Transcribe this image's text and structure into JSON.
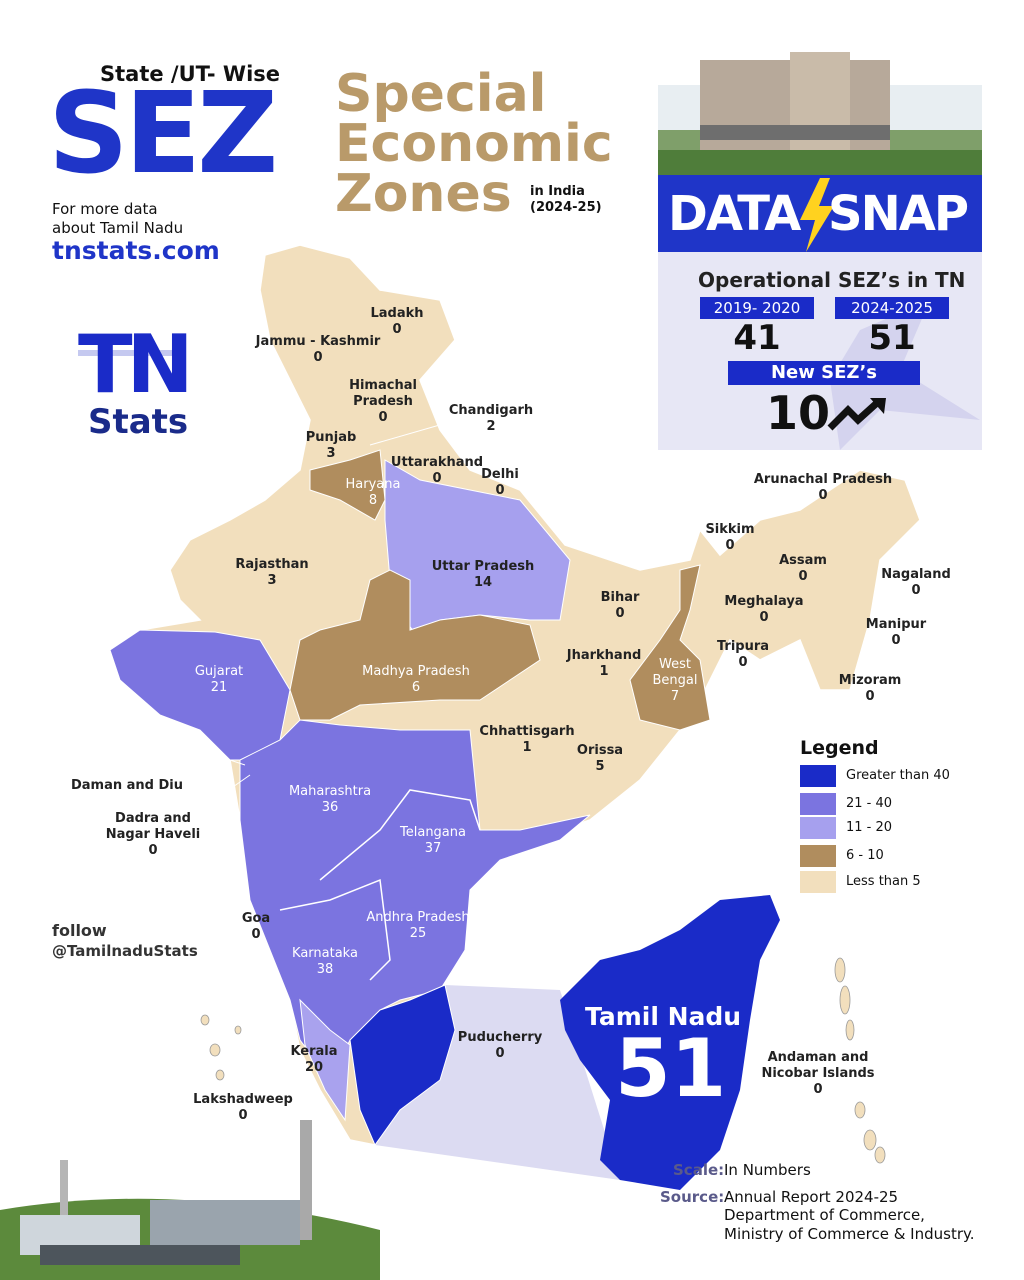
{
  "header": {
    "supertitle": "State /UT- Wise",
    "sez": "SEZ",
    "title_lines": [
      "Special",
      "Economic",
      "Zones"
    ],
    "in_india": "in India",
    "year": "(2024-25)",
    "more_data": [
      "For more data",
      "about Tamil Nadu"
    ],
    "site": "tnstats.com"
  },
  "logo": {
    "tn": "TN",
    "stats": "Stats"
  },
  "datasnap": {
    "brand": [
      "DATA",
      "SNAP"
    ],
    "heading": "Operational SEZ’s in TN",
    "periods": [
      {
        "label": "2019- 2020",
        "value": 41
      },
      {
        "label": "2024-2025",
        "value": 51
      }
    ],
    "new_label": "New SEZ’s",
    "new_value": 10
  },
  "regions": [
    {
      "name": "Ladakh",
      "value": 0
    },
    {
      "name": "Jammu - Kashmir",
      "value": 0
    },
    {
      "name": "Himachal\nPradesh",
      "value": 0
    },
    {
      "name": "Chandigarh",
      "value": 2
    },
    {
      "name": "Punjab",
      "value": 3
    },
    {
      "name": "Uttarakhand",
      "value": 0
    },
    {
      "name": "Delhi",
      "value": 0
    },
    {
      "name": "Haryana",
      "value": 8
    },
    {
      "name": "Rajasthan",
      "value": 3
    },
    {
      "name": "Uttar Pradesh",
      "value": 14
    },
    {
      "name": "Arunachal Pradesh",
      "value": 0
    },
    {
      "name": "Sikkim",
      "value": 0
    },
    {
      "name": "Assam",
      "value": 0
    },
    {
      "name": "Nagaland",
      "value": 0
    },
    {
      "name": "Bihar",
      "value": 0
    },
    {
      "name": "Meghalaya",
      "value": 0
    },
    {
      "name": "Manipur",
      "value": 0
    },
    {
      "name": "Tripura",
      "value": 0
    },
    {
      "name": "Jharkhand",
      "value": 1
    },
    {
      "name": "West\nBengal",
      "value": 7
    },
    {
      "name": "Mizoram",
      "value": 0
    },
    {
      "name": "Gujarat",
      "value": 21
    },
    {
      "name": "Madhya Pradesh",
      "value": 6
    },
    {
      "name": "Chhattisgarh",
      "value": 1
    },
    {
      "name": "Orissa",
      "value": 5
    },
    {
      "name": "Daman and Diu"
    },
    {
      "name": "Dadra and\nNagar Haveli",
      "value": 0
    },
    {
      "name": "Maharashtra",
      "value": 36
    },
    {
      "name": "Telangana",
      "value": 37
    },
    {
      "name": "Andhra Pradesh",
      "value": 25
    },
    {
      "name": "Goa",
      "value": 0
    },
    {
      "name": "Karnataka",
      "value": 38
    },
    {
      "name": "Kerala",
      "value": 20
    },
    {
      "name": "Puducherry",
      "value": 0
    },
    {
      "name": "Lakshadweep",
      "value": 0
    },
    {
      "name": "Andaman and\nNicobar Islands",
      "value": 0
    }
  ],
  "tn_callout": {
    "name": "Tamil Nadu",
    "value": 51
  },
  "legend": {
    "title": "Legend",
    "items": [
      {
        "label": "Greater than 40",
        "color": "#1a2bc8"
      },
      {
        "label": "21 - 40",
        "color": "#7b74e0"
      },
      {
        "label": "11 - 20",
        "color": "#a6a0ee"
      },
      {
        "label": "6 - 10",
        "color": "#b08d5e"
      },
      {
        "label": "Less than 5",
        "color": "#f2dfbd"
      }
    ]
  },
  "follow": {
    "label": "follow",
    "handle": "@TamilnaduStats"
  },
  "footer": {
    "scale_label": "Scale:",
    "scale": "In Numbers",
    "source_label": "Source:",
    "source_lines": [
      "Annual Report 2024-25",
      "Department of Commerce,",
      "Ministry of Commerce & Industry."
    ]
  }
}
